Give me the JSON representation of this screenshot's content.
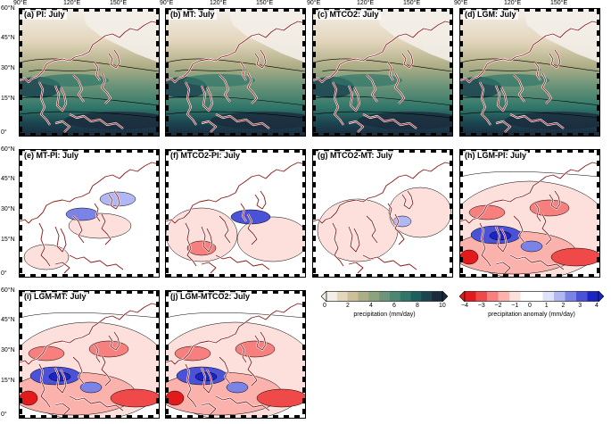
{
  "axes": {
    "lon_ticks": [
      "90°E",
      "120°E",
      "150°E"
    ],
    "lat_ticks": [
      "60°N",
      "45°N",
      "30°N",
      "15°N",
      "0°"
    ]
  },
  "panels": [
    {
      "id": "a",
      "title": "(a) PI: July",
      "kind": "precip"
    },
    {
      "id": "b",
      "title": "(b) MT: July",
      "kind": "precip"
    },
    {
      "id": "c",
      "title": "(c) MTCO2: July",
      "kind": "precip"
    },
    {
      "id": "d",
      "title": "(d) LGM: July",
      "kind": "precip"
    },
    {
      "id": "e",
      "title": "(e) MT-PI: July",
      "kind": "anom"
    },
    {
      "id": "f",
      "title": "(f) MTCO2-PI: July",
      "kind": "anom"
    },
    {
      "id": "g",
      "title": "(g) MTCO2-MT: July",
      "kind": "anom"
    },
    {
      "id": "h",
      "title": "(h) LGM-PI: July",
      "kind": "anom"
    },
    {
      "id": "i",
      "title": "(i) LGM-MT: July",
      "kind": "anom"
    },
    {
      "id": "j",
      "title": "(j) LGM-MTCO2: July",
      "kind": "anom"
    }
  ],
  "colorbars": {
    "precip": {
      "ticks": [
        "0",
        "2",
        "4",
        "6",
        "8",
        "10"
      ],
      "label": "precipitation (mm/day)",
      "colors": [
        "#f3eee8",
        "#e4d6bd",
        "#cdbf98",
        "#aeae86",
        "#8da27f",
        "#6d957a",
        "#4d8672",
        "#2f7669",
        "#1c5f5c",
        "#1b4450",
        "#1b2a3c"
      ]
    },
    "anom": {
      "ticks": [
        "−4",
        "−3",
        "−2",
        "−1",
        "0",
        "1",
        "2",
        "3",
        "4"
      ],
      "label": "precipitation anomaly (mm/day)",
      "colors": [
        "#e31a1c",
        "#f0494a",
        "#f7807e",
        "#fbb2ac",
        "#fde0dc",
        "#ffffff",
        "#ffffff",
        "#dfe2fb",
        "#b0b7f2",
        "#7b84e6",
        "#4a52d8",
        "#1c23c4"
      ]
    }
  }
}
